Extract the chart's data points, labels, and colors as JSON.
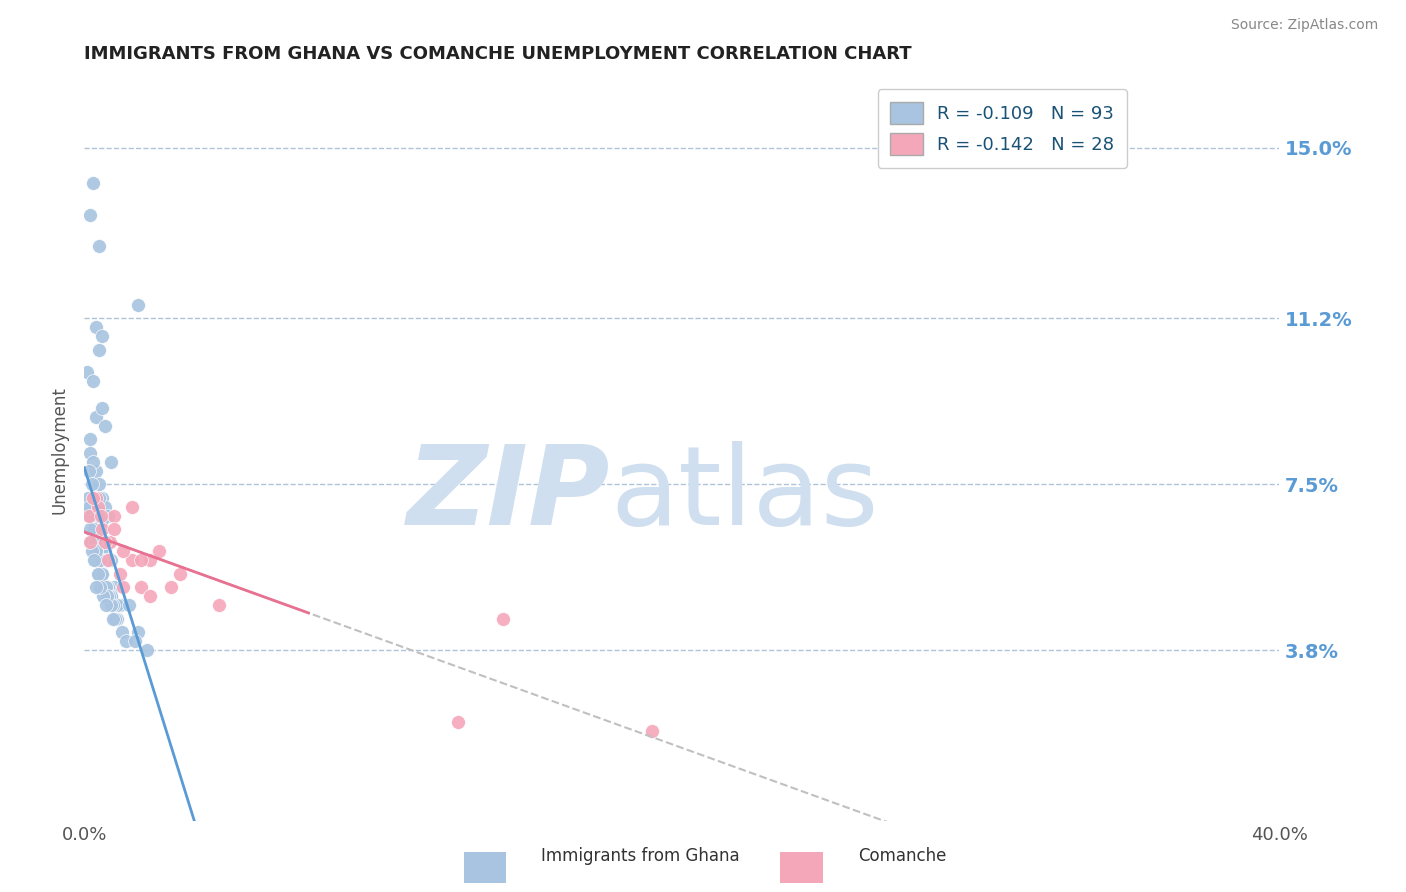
{
  "title": "IMMIGRANTS FROM GHANA VS COMANCHE UNEMPLOYMENT CORRELATION CHART",
  "source": "Source: ZipAtlas.com",
  "xlabel": "",
  "ylabel": "Unemployment",
  "xlim": [
    0.0,
    40.0
  ],
  "ylim": [
    0.0,
    16.5
  ],
  "yticks": [
    3.8,
    7.5,
    11.2,
    15.0
  ],
  "xticks": [
    0.0,
    40.0
  ],
  "xtick_labels": [
    "0.0%",
    "40.0%"
  ],
  "ytick_labels": [
    "3.8%",
    "7.5%",
    "11.2%",
    "15.0%"
  ],
  "series1_color": "#a8c4e0",
  "series2_color": "#f4a7b9",
  "series1_label": "Immigrants from Ghana",
  "series2_label": "Comanche",
  "legend_r1": "R = -0.109",
  "legend_n1": "N = 93",
  "legend_r2": "R = -0.142",
  "legend_n2": "N = 28",
  "regression1_color": "#5b9bd5",
  "regression2_color": "#c0c0c0",
  "regression2_linestyle": "--",
  "watermark_zip": "ZIP",
  "watermark_atlas": "atlas",
  "watermark_color": "#d0dff0",
  "background_color": "#ffffff",
  "grid_color": "#b0c4d8",
  "ghana_x": [
    0.3,
    0.5,
    1.8,
    0.2,
    0.4,
    0.6,
    0.1,
    0.3,
    0.5,
    0.4,
    0.6,
    0.7,
    0.9,
    0.2,
    0.4,
    0.5,
    0.6,
    0.7,
    0.8,
    0.2,
    0.3,
    0.5,
    0.6,
    0.8,
    0.15,
    0.4,
    0.7,
    0.9,
    0.35,
    0.5,
    0.65,
    0.85,
    0.15,
    0.3,
    0.45,
    0.75,
    1.0,
    0.2,
    0.55,
    0.7,
    0.3,
    0.4,
    0.5,
    0.65,
    1.2,
    0.9,
    0.25,
    0.45,
    0.8,
    1.1,
    0.35,
    0.55,
    0.7,
    0.9,
    0.12,
    0.32,
    0.52,
    0.65,
    0.78,
    1.5,
    0.18,
    0.38,
    0.58,
    0.72,
    0.95,
    1.8,
    0.22,
    0.42,
    0.62,
    0.82,
    1.1,
    0.14,
    0.34,
    0.54,
    0.72,
    0.88,
    1.25,
    0.19,
    0.39,
    0.59,
    0.76,
    1.02,
    1.38,
    0.24,
    0.44,
    0.64,
    0.95,
    1.7,
    0.32,
    0.52,
    0.72,
    2.1,
    0.4
  ],
  "ghana_y": [
    14.2,
    12.8,
    11.5,
    13.5,
    11.0,
    10.8,
    10.0,
    9.8,
    10.5,
    9.0,
    9.2,
    8.8,
    8.0,
    8.2,
    7.8,
    7.5,
    7.2,
    7.0,
    6.8,
    8.5,
    8.0,
    7.2,
    6.7,
    6.2,
    7.0,
    6.5,
    6.0,
    5.8,
    5.8,
    5.5,
    5.2,
    5.0,
    7.8,
    7.2,
    6.8,
    5.8,
    5.2,
    7.0,
    6.0,
    5.8,
    6.2,
    6.2,
    5.8,
    5.2,
    4.8,
    5.0,
    7.5,
    6.8,
    5.2,
    4.8,
    6.0,
    5.8,
    5.2,
    5.0,
    7.2,
    6.5,
    5.8,
    5.2,
    5.0,
    4.8,
    6.8,
    6.0,
    5.5,
    5.2,
    4.8,
    4.2,
    6.2,
    5.8,
    5.2,
    5.0,
    4.5,
    7.0,
    6.2,
    5.8,
    5.2,
    4.8,
    4.2,
    6.5,
    6.0,
    5.5,
    5.0,
    4.5,
    4.0,
    6.0,
    5.5,
    5.0,
    4.5,
    4.0,
    5.8,
    5.2,
    4.8,
    3.8,
    5.2
  ],
  "comanche_x": [
    0.15,
    0.4,
    1.6,
    0.6,
    2.2,
    1.0,
    2.5,
    0.2,
    0.8,
    1.3,
    3.2,
    1.9,
    0.45,
    1.2,
    4.5,
    1.6,
    0.85,
    0.3,
    2.2,
    1.0,
    1.3,
    0.55,
    2.9,
    1.9,
    0.7,
    12.5,
    14.0,
    19.0
  ],
  "comanche_y": [
    6.8,
    7.2,
    7.0,
    6.5,
    5.8,
    6.8,
    6.0,
    6.2,
    5.8,
    5.2,
    5.5,
    5.2,
    7.0,
    5.5,
    4.8,
    5.8,
    6.2,
    7.2,
    5.0,
    6.5,
    6.0,
    6.8,
    5.2,
    5.8,
    6.2,
    2.2,
    4.5,
    2.0
  ],
  "pink_solid_line_color": "#e87090",
  "ghana_reg_xstart": 0.0,
  "ghana_reg_xend": 4.0,
  "comanche_reg_xstart": 0.0,
  "comanche_reg_xend": 40.0
}
